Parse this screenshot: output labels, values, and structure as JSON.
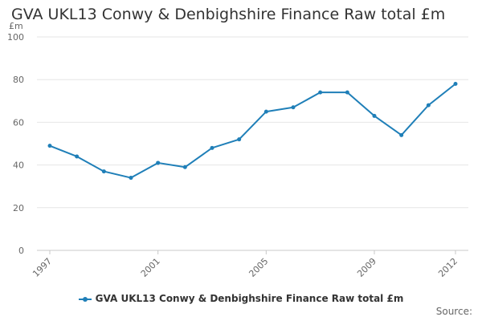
{
  "title": "GVA UKL13 Conwy & Denbighshire Finance Raw total £m",
  "source_label": "Source:",
  "colors": {
    "series": "#1f7fb8",
    "grid": "#e6e6e6",
    "axis_text": "#666666"
  },
  "chart_data": {
    "type": "line",
    "title": "GVA UKL13 Conwy & Denbighshire Finance Raw total £m",
    "ylabel": "£m",
    "xlabel": "",
    "ylim": [
      0,
      100
    ],
    "yticks": [
      0,
      20,
      40,
      60,
      80,
      100
    ],
    "xticks": [
      "1997",
      "2001",
      "2005",
      "2009",
      "2012"
    ],
    "x": [
      1997,
      1998,
      1999,
      2000,
      2001,
      2002,
      2003,
      2004,
      2005,
      2006,
      2007,
      2008,
      2009,
      2010,
      2011,
      2012
    ],
    "grid": true,
    "legend_position": "bottom",
    "series": [
      {
        "name": "GVA UKL13 Conwy & Denbighshire Finance Raw total £m",
        "values": [
          49,
          44,
          37,
          34,
          41,
          39,
          48,
          52,
          65,
          67,
          74,
          74,
          63,
          54,
          68,
          78
        ]
      }
    ]
  }
}
